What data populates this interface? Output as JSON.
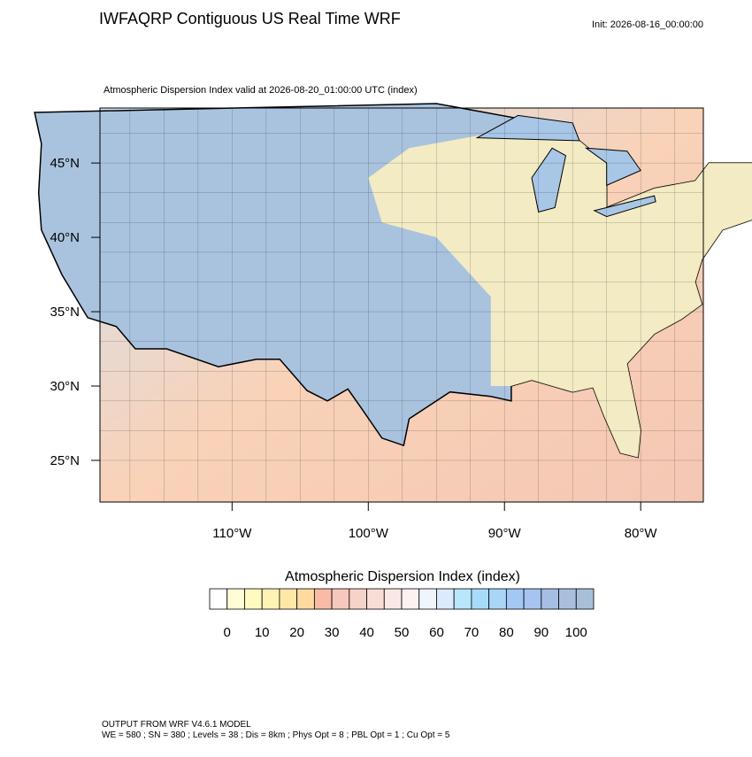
{
  "header": {
    "title": "IWFAQRP Contiguous US Real Time WRF",
    "init": "Init: 2026-08-16_00:00:00",
    "subtitle": "Atmospheric Dispersion Index valid at 2026-08-20_01:00:00 UTC   (index)"
  },
  "map": {
    "lonlim": [
      -119.7,
      -75.4
    ],
    "latlim": [
      22.2,
      48.7
    ],
    "lon_ticks": [
      {
        "value": -110,
        "label": "110°W"
      },
      {
        "value": -100,
        "label": "100°W"
      },
      {
        "value": -90,
        "label": "90°W"
      },
      {
        "value": -80,
        "label": "80°W"
      }
    ],
    "lat_ticks": [
      {
        "value": 45,
        "label": "45°N"
      },
      {
        "value": 40,
        "label": "40°N"
      },
      {
        "value": 35,
        "label": "35°N"
      },
      {
        "value": 30,
        "label": "30°N"
      },
      {
        "value": 25,
        "label": "25°N"
      }
    ]
  },
  "colorbar": {
    "title": "Atmospheric Dispersion Index  (index)",
    "levels": [
      0,
      5,
      10,
      15,
      20,
      25,
      30,
      35,
      40,
      45,
      50,
      55,
      60,
      65,
      70,
      75,
      80,
      85,
      90,
      95,
      100
    ],
    "ticks": [
      0,
      10,
      20,
      30,
      40,
      50,
      60,
      70,
      80,
      90,
      100
    ],
    "colors": [
      "#ffffff",
      "#fffdd6",
      "#fffbc0",
      "#fff3b4",
      "#ffe8a6",
      "#ffd9a0",
      "#f9bba6",
      "#f6c8bd",
      "#f6d3c9",
      "#f8ddd6",
      "#fae8e5",
      "#fdf2f2",
      "#f0f4fd",
      "#dbeafd",
      "#b8e6fb",
      "#a6dcfa",
      "#a9d5f7",
      "#a3c8f6",
      "#a7c3f2",
      "#a5bfe4",
      "#a9c0dd",
      "#a8bfd8"
    ]
  },
  "footer": {
    "line1": "OUTPUT FROM WRF V4.6.1 MODEL",
    "line2": "WE = 580 ; SN = 380 ; Levels = 38 ; Dis = 8km ; Phys Opt = 8 ; PBL Opt = 1 ; Cu Opt = 5"
  }
}
